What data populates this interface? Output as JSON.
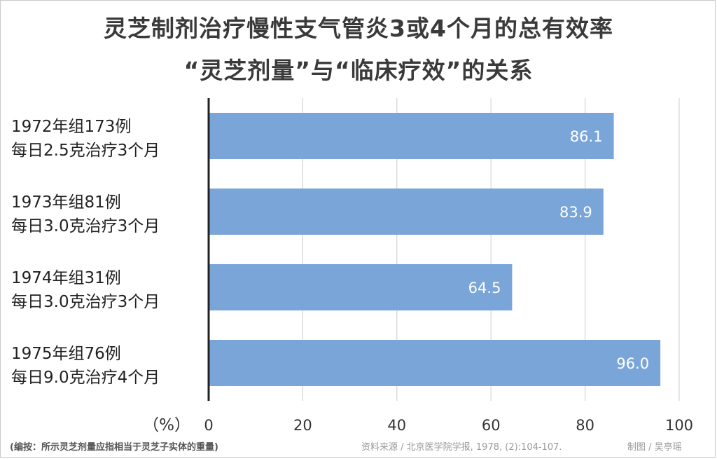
{
  "chart_data": {
    "type": "bar",
    "orientation": "horizontal",
    "title": "灵芝制剂治疗慢性支气管炎3或4个月的总有效率",
    "subtitle": "“灵芝剂量”与“临床疗效”的关系",
    "categories": [
      {
        "line1": "1972年组173例",
        "line2": "每日2.5克治疗3个月"
      },
      {
        "line1": "1973年组81例",
        "line2": "每日3.0克治疗3个月"
      },
      {
        "line1": "1974年组31例",
        "line2": "每日3.0克治疗3个月"
      },
      {
        "line1": "1975年组76例",
        "line2": "每日9.0克治疗4个月"
      }
    ],
    "values": [
      86.1,
      83.9,
      64.5,
      96.0
    ],
    "value_labels": [
      "86.1",
      "83.9",
      "64.5",
      "96.0"
    ],
    "xlim": [
      0,
      100
    ],
    "xticks": [
      "0",
      "20",
      "40",
      "60",
      "80",
      "100"
    ],
    "xunit": "（%）",
    "grid": true,
    "legend": "none",
    "bar_color": "#7aa5d8"
  },
  "footnote": "(编按：所示灵芝剂量应指相当于灵芝子实体的重量)",
  "source": "资料来源 / 北京医学院学报, 1978, (2):104-107.",
  "credit": "制图 / 吴亭瑶"
}
